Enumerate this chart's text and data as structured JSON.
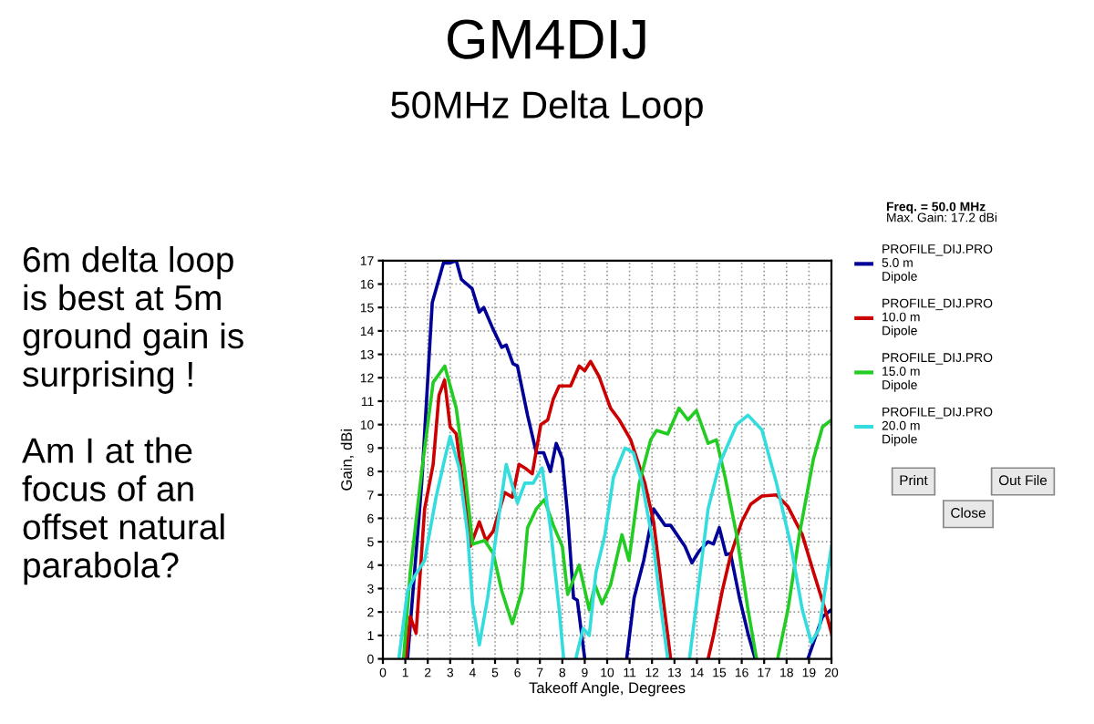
{
  "chart_data": {
    "type": "line",
    "title": "GM4DIJ",
    "subtitle": "50MHz Delta Loop",
    "xlabel": "Takeoff Angle, Degrees",
    "ylabel": "Gain, dBi",
    "xlim": [
      0,
      20
    ],
    "ylim": [
      0,
      17
    ],
    "xticks": [
      0,
      1,
      2,
      3,
      4,
      5,
      6,
      7,
      8,
      9,
      10,
      11,
      12,
      13,
      14,
      15,
      16,
      17,
      18,
      19,
      20
    ],
    "yticks": [
      0,
      1,
      2,
      3,
      4,
      5,
      6,
      7,
      8,
      9,
      10,
      11,
      12,
      13,
      14,
      15,
      16,
      17
    ],
    "grid": true,
    "legend": "right",
    "marker": "none",
    "line_style": "solid",
    "annotations": [
      "6m delta loop\nis best at 5m\nground gain is\nsurprising !\n\nAm I at the\nfocus of an\noffset natural\nparabola?",
      "Freq. = 50.0 MHz",
      "Max. Gain: 17.2 dBi",
      "Print",
      "Out File",
      "Close"
    ],
    "series": [
      {
        "name": "PROFILE_DIJ.PRO\n5.0 m\nDipole",
        "color": "#000099",
        "x": [
          1.1,
          1.73,
          2.2,
          2.7,
          3.0,
          3.27,
          3.5,
          3.98,
          4.3,
          4.5,
          4.9,
          5.3,
          5.5,
          5.8,
          6.0,
          6.45,
          6.84,
          7.17,
          7.47,
          7.73,
          8.0,
          8.24,
          8.5,
          8.67,
          9.0,
          10.0,
          10.87,
          11.2,
          11.63,
          12.07,
          12.58,
          12.83,
          13.47,
          13.78,
          14.1,
          14.5,
          14.74,
          15.0,
          15.3,
          15.5,
          15.9,
          16.3,
          16.6,
          18.0,
          18.95,
          19.6,
          20
        ],
        "values": [
          0,
          7.5,
          15.2,
          16.9,
          16.9,
          17.0,
          16.2,
          15.8,
          14.8,
          15.0,
          14.1,
          13.3,
          13.4,
          12.6,
          12.5,
          10.4,
          8.8,
          8.8,
          8.0,
          9.2,
          8.55,
          6.1,
          2.6,
          2.5,
          0,
          null,
          0,
          2.6,
          4.2,
          6.4,
          5.7,
          5.7,
          4.8,
          4.1,
          4.6,
          5.0,
          4.9,
          5.6,
          4.45,
          4.5,
          2.6,
          1.0,
          0,
          null,
          0,
          1.8,
          2.1
        ]
      },
      {
        "name": "PROFILE_DIJ.PRO\n10.0 m\nDipole",
        "color": "#cc0000",
        "x": [
          1.02,
          1.22,
          1.48,
          1.86,
          2.24,
          2.5,
          2.75,
          3.0,
          3.27,
          3.57,
          3.9,
          4.3,
          4.6,
          4.92,
          5.43,
          5.77,
          6.07,
          6.33,
          6.66,
          7.04,
          7.35,
          7.6,
          7.86,
          8.37,
          8.75,
          9.0,
          9.26,
          9.64,
          10.15,
          10.54,
          11.05,
          11.68,
          12.07,
          12.45,
          12.83,
          13.5,
          14.5,
          14.74,
          15.13,
          15.5,
          16.0,
          16.4,
          16.9,
          17.55,
          18.06,
          18.7,
          19.2,
          19.72,
          20
        ],
        "values": [
          0,
          1.8,
          1.1,
          6.4,
          8.3,
          11.25,
          11.9,
          9.9,
          9.6,
          7.5,
          4.8,
          5.85,
          5.05,
          5.45,
          7.1,
          6.9,
          8.3,
          8.15,
          7.9,
          10.0,
          10.2,
          11.1,
          11.65,
          11.65,
          12.5,
          12.3,
          12.7,
          12.05,
          10.7,
          10.2,
          9.35,
          7.5,
          5.85,
          2.9,
          0,
          null,
          0,
          1.0,
          2.9,
          4.4,
          5.85,
          6.6,
          6.95,
          7.0,
          6.5,
          5.3,
          3.7,
          2.1,
          1.1
        ]
      },
      {
        "name": "PROFILE_DIJ.PRO\n15.0 m\nDipole",
        "color": "#22cc22",
        "x": [
          0.92,
          1.22,
          1.73,
          2.24,
          2.76,
          3.27,
          3.65,
          4.0,
          4.54,
          4.92,
          5.3,
          5.77,
          6.2,
          6.45,
          6.84,
          7.2,
          7.6,
          8.0,
          8.24,
          8.5,
          8.75,
          9.2,
          9.46,
          9.77,
          10.15,
          10.66,
          10.97,
          11.43,
          11.94,
          12.2,
          12.7,
          13.2,
          13.6,
          13.98,
          14.5,
          14.87,
          15.26,
          15.77,
          16.28,
          16.66,
          17.1,
          17.6,
          18.06,
          18.57,
          19.2,
          19.6,
          20
        ],
        "values": [
          0,
          3.7,
          8.0,
          11.8,
          12.5,
          10.7,
          8.0,
          4.9,
          5.05,
          4.5,
          2.9,
          1.5,
          2.9,
          5.6,
          6.4,
          6.8,
          5.7,
          4.8,
          2.75,
          3.4,
          4.0,
          2.1,
          3.15,
          2.35,
          3.15,
          5.3,
          4.2,
          7.5,
          9.35,
          9.75,
          9.6,
          10.7,
          10.2,
          10.6,
          9.2,
          9.35,
          7.75,
          5.3,
          2.1,
          0,
          null,
          0,
          2.1,
          5.3,
          8.55,
          9.9,
          10.2
        ]
      },
      {
        "name": "PROFILE_DIJ.PRO\n20.0 m\nDipole",
        "color": "#33dddd",
        "x": [
          0.71,
          1.1,
          1.43,
          1.86,
          2.37,
          2.76,
          3.0,
          3.4,
          3.78,
          4.0,
          4.3,
          4.67,
          5.05,
          5.5,
          6.0,
          6.33,
          6.7,
          7.1,
          7.47,
          7.86,
          8.06,
          8.3,
          8.6,
          8.93,
          9.2,
          9.5,
          9.9,
          10.28,
          10.8,
          11.17,
          11.56,
          12.07,
          12.45,
          12.7,
          13.2,
          13.67,
          13.98,
          14.5,
          15.0,
          15.77,
          16.28,
          16.9,
          17.55,
          18.2,
          18.7,
          19.1,
          19.46,
          20
        ],
        "values": [
          0,
          2.9,
          3.55,
          4.2,
          6.9,
          8.55,
          9.5,
          8.15,
          5.3,
          2.35,
          0.6,
          2.6,
          5.3,
          8.3,
          6.65,
          7.5,
          7.5,
          8.15,
          5.6,
          2.1,
          0,
          null,
          0,
          1.3,
          1.0,
          3.7,
          5.3,
          7.75,
          9.0,
          8.8,
          7.5,
          4.8,
          1.8,
          0,
          null,
          0,
          2.35,
          6.4,
          8.3,
          10.0,
          10.4,
          9.77,
          7.5,
          4.8,
          2.1,
          0.7,
          1.3,
          4.8
        ]
      }
    ]
  }
}
